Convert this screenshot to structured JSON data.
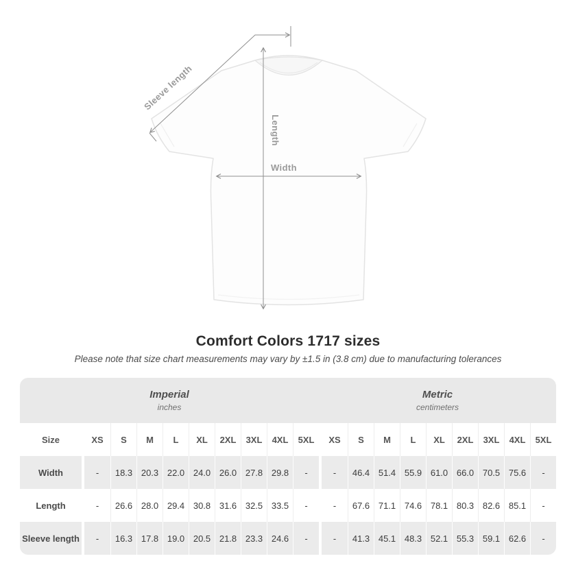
{
  "title": "Comfort Colors 1717 sizes",
  "subtitle": "Please note that size chart measurements may vary by ±1.5 in (3.8 cm) due to manufacturing tolerances",
  "diagram": {
    "labels": {
      "sleeve": "Sleeve length",
      "length": "Length",
      "width": "Width"
    },
    "line_color": "#8f8f8f",
    "label_color": "#9a9a9a"
  },
  "chart_data": {
    "type": "table",
    "groups": [
      {
        "label": "Imperial",
        "sublabel": "inches"
      },
      {
        "label": "Metric",
        "sublabel": "centimeters"
      }
    ],
    "size_header": "Size",
    "sizes": [
      "XS",
      "S",
      "M",
      "L",
      "XL",
      "2XL",
      "3XL",
      "4XL",
      "5XL"
    ],
    "rows": [
      {
        "label": "Width",
        "imperial": [
          "-",
          "18.3",
          "20.3",
          "22.0",
          "24.0",
          "26.0",
          "27.8",
          "29.8",
          "-"
        ],
        "metric": [
          "-",
          "46.4",
          "51.4",
          "55.9",
          "61.0",
          "66.0",
          "70.5",
          "75.6",
          "-"
        ]
      },
      {
        "label": "Length",
        "imperial": [
          "-",
          "26.6",
          "28.0",
          "29.4",
          "30.8",
          "31.6",
          "32.5",
          "33.5",
          "-"
        ],
        "metric": [
          "-",
          "67.6",
          "71.1",
          "74.6",
          "78.1",
          "80.3",
          "82.6",
          "85.1",
          "-"
        ]
      },
      {
        "label": "Sleeve length",
        "imperial": [
          "-",
          "16.3",
          "17.8",
          "19.0",
          "20.5",
          "21.8",
          "23.3",
          "24.6",
          "-"
        ],
        "metric": [
          "-",
          "41.3",
          "45.1",
          "48.3",
          "52.1",
          "55.3",
          "59.1",
          "62.6",
          "-"
        ]
      }
    ],
    "colors": {
      "band": "#e9e9e9",
      "stripe": "#ebebeb"
    }
  }
}
